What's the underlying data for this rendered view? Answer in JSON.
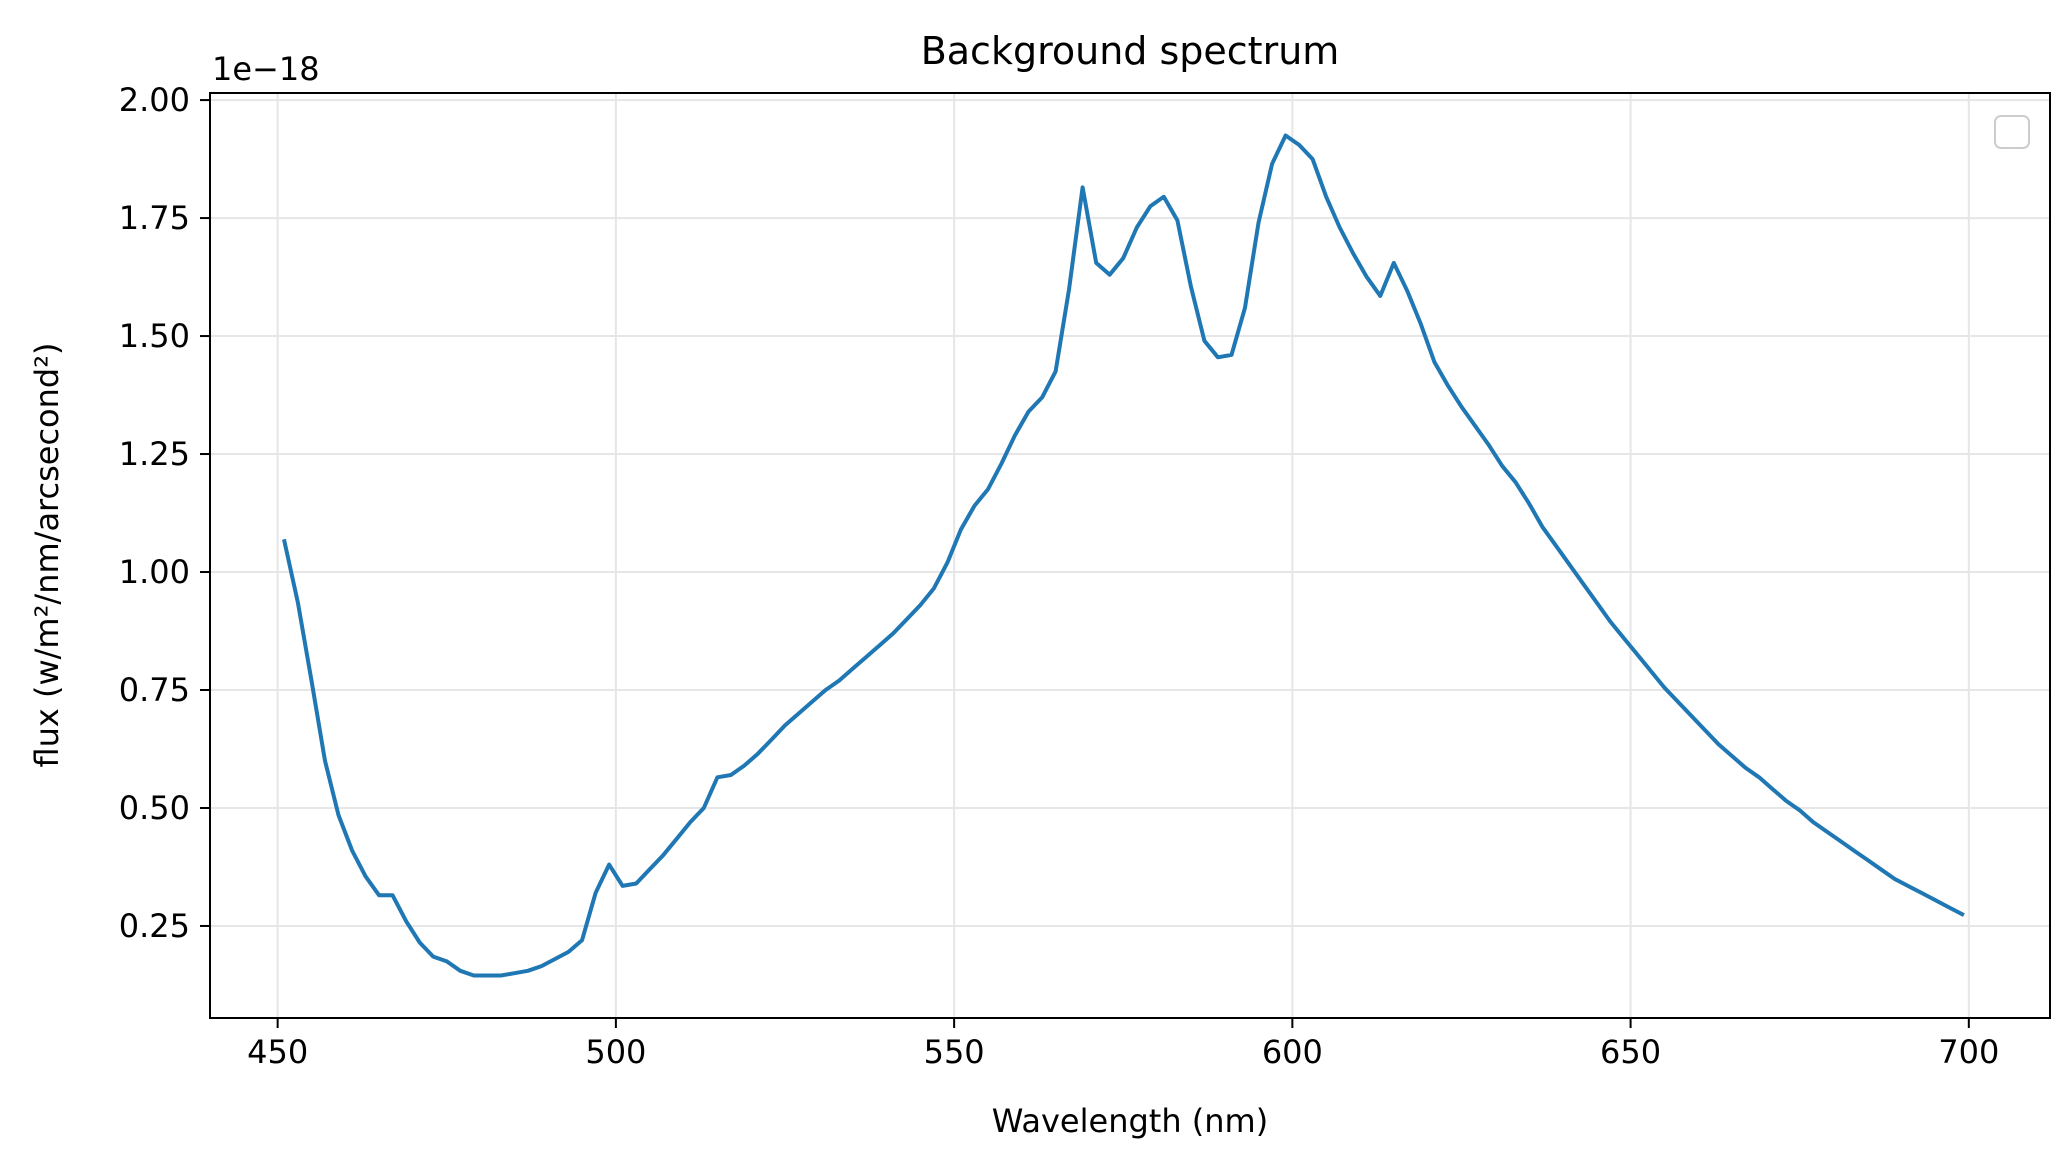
{
  "chart_data": {
    "type": "line",
    "title": "Background spectrum",
    "xlabel": "Wavelength (nm)",
    "ylabel": "flux (w/m²/nm/arcsecond²)",
    "y_offset_label": "1e−18",
    "xlim": [
      440,
      712
    ],
    "ylim": [
      0.055,
      2.015
    ],
    "x_ticks": [
      450,
      500,
      550,
      600,
      650,
      700
    ],
    "x_tick_labels": [
      "450",
      "500",
      "550",
      "600",
      "650",
      "700"
    ],
    "y_ticks": [
      0.25,
      0.5,
      0.75,
      1.0,
      1.25,
      1.5,
      1.75,
      2.0
    ],
    "y_tick_labels": [
      "0.25",
      "0.50",
      "0.75",
      "1.00",
      "1.25",
      "1.50",
      "1.75",
      "2.00"
    ],
    "grid": true,
    "legend": "top-right, empty",
    "series": [
      {
        "color": "#1f77b4",
        "x": [
          451.0,
          453.0,
          455.0,
          457.0,
          459.0,
          461.0,
          463.0,
          465.0,
          467.0,
          469.0,
          471.0,
          473.0,
          475.0,
          477.0,
          479.0,
          481.0,
          483.0,
          485.0,
          487.0,
          489.0,
          491.0,
          493.0,
          495.0,
          497.0,
          499.0,
          501.0,
          503.0,
          505.0,
          507.0,
          509.0,
          511.0,
          513.0,
          515.0,
          517.0,
          519.0,
          521.0,
          523.0,
          525.0,
          527.0,
          529.0,
          531.0,
          533.0,
          535.0,
          537.0,
          539.0,
          541.0,
          543.0,
          545.0,
          547.0,
          549.0,
          551.0,
          553.0,
          555.0,
          557.0,
          559.0,
          561.0,
          563.0,
          565.0,
          567.0,
          569.0,
          571.0,
          573.0,
          575.0,
          577.0,
          579.0,
          581.0,
          583.0,
          585.0,
          587.0,
          589.0,
          591.0,
          593.0,
          595.0,
          597.0,
          599.0,
          601.0,
          603.0,
          605.0,
          607.0,
          609.0,
          611.0,
          613.0,
          615.0,
          617.0,
          619.0,
          621.0,
          623.0,
          625.0,
          627.0,
          629.0,
          631.0,
          633.0,
          635.0,
          637.0,
          639.0,
          641.0,
          643.0,
          645.0,
          647.0,
          649.0,
          651.0,
          653.0,
          655.0,
          657.0,
          659.0,
          661.0,
          663.0,
          665.0,
          667.0,
          669.0,
          671.0,
          673.0,
          675.0,
          677.0,
          679.0,
          681.0,
          683.0,
          685.0,
          687.0,
          689.0,
          691.0,
          693.0,
          695.0,
          697.0,
          699.0
        ],
        "y": [
          1.065,
          0.935,
          0.77,
          0.6,
          0.485,
          0.41,
          0.355,
          0.315,
          0.315,
          0.26,
          0.215,
          0.185,
          0.175,
          0.155,
          0.145,
          0.145,
          0.145,
          0.15,
          0.155,
          0.165,
          0.18,
          0.195,
          0.22,
          0.32,
          0.38,
          0.335,
          0.34,
          0.37,
          0.4,
          0.435,
          0.47,
          0.5,
          0.565,
          0.57,
          0.59,
          0.615,
          0.645,
          0.675,
          0.7,
          0.725,
          0.75,
          0.77,
          0.795,
          0.82,
          0.845,
          0.87,
          0.9,
          0.93,
          0.965,
          1.02,
          1.09,
          1.14,
          1.175,
          1.23,
          1.29,
          1.34,
          1.37,
          1.425,
          1.6,
          1.815,
          1.655,
          1.63,
          1.665,
          1.73,
          1.775,
          1.795,
          1.745,
          1.605,
          1.49,
          1.455,
          1.46,
          1.56,
          1.74,
          1.865,
          1.925,
          1.905,
          1.875,
          1.795,
          1.73,
          1.675,
          1.625,
          1.585,
          1.655,
          1.595,
          1.525,
          1.445,
          1.395,
          1.35,
          1.31,
          1.27,
          1.225,
          1.19,
          1.145,
          1.095,
          1.055,
          1.015,
          0.975,
          0.935,
          0.895,
          0.86,
          0.825,
          0.79,
          0.755,
          0.725,
          0.695,
          0.665,
          0.635,
          0.61,
          0.585,
          0.565,
          0.54,
          0.515,
          0.495,
          0.47,
          0.45,
          0.43,
          0.41,
          0.39,
          0.37,
          0.35,
          0.335,
          0.32,
          0.305,
          0.29,
          0.275
        ]
      }
    ]
  }
}
